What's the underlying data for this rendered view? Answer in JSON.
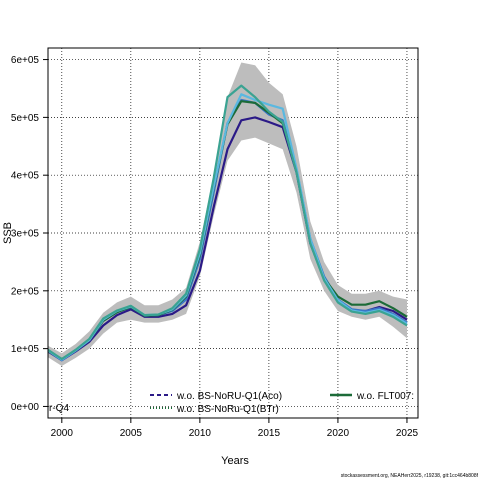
{
  "chart_data": {
    "type": "line",
    "xlabel": "Years",
    "ylabel": "SSB",
    "xlim": [
      1999,
      2025.8
    ],
    "ylim": [
      -20000,
      620000
    ],
    "x_ticks": [
      2000,
      2005,
      2010,
      2015,
      2020,
      2025
    ],
    "y_ticks": [
      0,
      100000,
      200000,
      300000,
      400000,
      500000,
      600000
    ],
    "y_tick_labels": [
      "0e+00",
      "1e+05",
      "2e+05",
      "3e+05",
      "4e+05",
      "5e+05",
      "6e+05"
    ],
    "grid": true,
    "band": {
      "x": [
        1999,
        2000,
        2001,
        2002,
        2003,
        2004,
        2005,
        2006,
        2007,
        2008,
        2009,
        2010,
        2011,
        2012,
        2013,
        2014,
        2015,
        2016,
        2017,
        2018,
        2019,
        2020,
        2021,
        2022,
        2023,
        2024,
        2025
      ],
      "upper": [
        105000,
        92000,
        108000,
        130000,
        162000,
        180000,
        190000,
        175000,
        175000,
        185000,
        205000,
        285000,
        400000,
        535000,
        595000,
        590000,
        560000,
        540000,
        450000,
        320000,
        250000,
        210000,
        195000,
        195000,
        200000,
        190000,
        185000
      ],
      "lower": [
        85000,
        70000,
        84000,
        100000,
        126000,
        145000,
        150000,
        145000,
        145000,
        150000,
        160000,
        225000,
        330000,
        425000,
        460000,
        465000,
        455000,
        445000,
        370000,
        255000,
        200000,
        165000,
        155000,
        150000,
        155000,
        138000,
        118000
      ]
    },
    "series": [
      {
        "name": "w.o. BS-NoRU-Q1(Aco)",
        "color": "#2b1a87",
        "dash": "dashed",
        "x": [
          1999,
          2000,
          2001,
          2002,
          2003,
          2004,
          2005,
          2006,
          2007,
          2008,
          2009,
          2010,
          2011,
          2012,
          2013,
          2014,
          2015,
          2016,
          2017,
          2018,
          2019,
          2020,
          2021,
          2022,
          2023,
          2024,
          2025
        ],
        "y": [
          95000,
          80000,
          95000,
          112000,
          140000,
          158000,
          168000,
          155000,
          155000,
          160000,
          175000,
          235000,
          345000,
          445000,
          495000,
          500000,
          492000,
          483000,
          405000,
          282000,
          220000,
          182000,
          165000,
          165000,
          172000,
          165000,
          150000
        ]
      },
      {
        "name": "w.o. BS-NoRu-Q1(BTr)",
        "color": "#3a76c7",
        "dash": "dotted",
        "x": [
          1999,
          2000,
          2001,
          2002,
          2003,
          2004,
          2005,
          2006,
          2007,
          2008,
          2009,
          2010,
          2011,
          2012,
          2013,
          2014,
          2015,
          2016,
          2017,
          2018,
          2019,
          2020,
          2021,
          2022,
          2023,
          2024,
          2025
        ],
        "y": [
          96000,
          80000,
          96000,
          115000,
          148000,
          163000,
          172000,
          157000,
          158000,
          165000,
          185000,
          255000,
          370000,
          490000,
          530000,
          525000,
          505000,
          495000,
          410000,
          290000,
          225000,
          185000,
          168000,
          165000,
          170000,
          160000,
          145000
        ]
      },
      {
        "name": "w.o. FLT007:",
        "color": "#1c6b38",
        "dash": "solid",
        "x": [
          1999,
          2000,
          2001,
          2002,
          2003,
          2004,
          2005,
          2006,
          2007,
          2008,
          2009,
          2010,
          2011,
          2012,
          2013,
          2014,
          2015,
          2016,
          2017,
          2018,
          2019,
          2020,
          2021,
          2022,
          2023,
          2024,
          2025
        ],
        "y": [
          96000,
          82000,
          97000,
          115000,
          148000,
          163000,
          172000,
          157000,
          158000,
          167000,
          190000,
          262000,
          378000,
          488000,
          528000,
          525000,
          508000,
          490000,
          408000,
          288000,
          222000,
          190000,
          176000,
          176000,
          182000,
          170000,
          155000
        ]
      },
      {
        "name": "",
        "color": "#5ab8e0",
        "dash": "solid",
        "x": [
          1999,
          2000,
          2001,
          2002,
          2003,
          2004,
          2005,
          2006,
          2007,
          2008,
          2009,
          2010,
          2011,
          2012,
          2013,
          2014,
          2015,
          2016,
          2017,
          2018,
          2019,
          2020,
          2021,
          2022,
          2023,
          2024,
          2025
        ],
        "y": [
          97000,
          81000,
          97000,
          115000,
          150000,
          165000,
          173000,
          158000,
          159000,
          168000,
          192000,
          265000,
          380000,
          490000,
          540000,
          530000,
          522000,
          515000,
          412000,
          290000,
          222000,
          184000,
          166000,
          162000,
          167000,
          158000,
          143000
        ]
      },
      {
        "name": "",
        "color": "#3aa392",
        "dash": "solid",
        "x": [
          1999,
          2000,
          2001,
          2002,
          2003,
          2004,
          2005,
          2006,
          2007,
          2008,
          2009,
          2010,
          2011,
          2012,
          2013,
          2014,
          2015,
          2016,
          2017,
          2018,
          2019,
          2020,
          2021,
          2022,
          2023,
          2024,
          2025
        ],
        "y": [
          98000,
          82000,
          98000,
          117000,
          152000,
          166000,
          174000,
          158000,
          159000,
          170000,
          195000,
          272000,
          395000,
          535000,
          555000,
          535000,
          510000,
          492000,
          405000,
          282000,
          218000,
          180000,
          164000,
          160000,
          165000,
          155000,
          140000
        ]
      }
    ],
    "legend_labels": [
      "w.o. BS-NoRU-Q1(Aco)",
      "w.o. BS-NoRu-Q1(BTr)",
      "w.o. FLT007:"
    ],
    "clipped_label": "r-Q4",
    "footer": "stockassessment.org, NEAHerr2025, r19238, git:1cc464b808f"
  }
}
